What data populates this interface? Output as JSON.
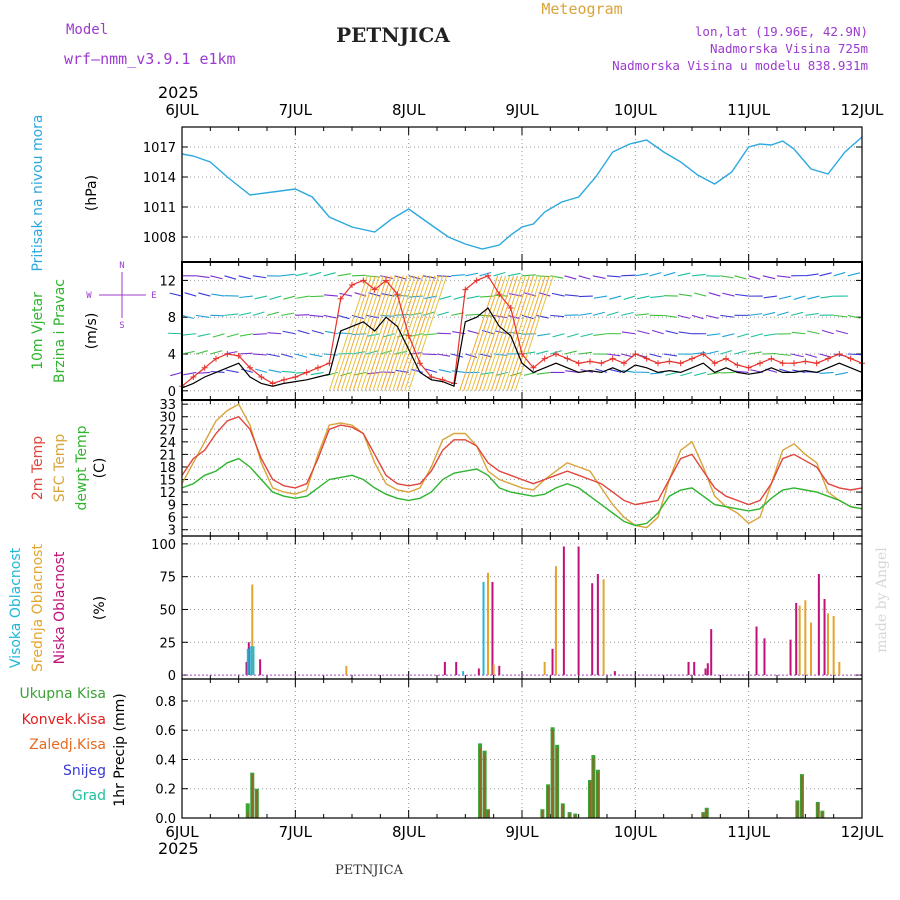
{
  "header": {
    "model_label": "Model",
    "model_name": "wrf—nmm_v3.9.1  e1km",
    "station": "PETNJICA",
    "product": "Meteogram",
    "lonlat": "lon,lat (19.96E, 42.9N)",
    "elevation": "Nadmorska Visina 725m",
    "model_elevation": "Nadmorska Visina u modelu 838.931m"
  },
  "footer": {
    "station": "PETNJICA",
    "credit": "made by Angel"
  },
  "time_axis": {
    "year": "2025",
    "labels": [
      "6JUL",
      "7JUL",
      "8JUL",
      "9JUL",
      "10JUL",
      "11JUL",
      "12JUL"
    ],
    "range_days": [
      0,
      6
    ]
  },
  "colors": {
    "pressure": "#2ba8e0",
    "wind_speed": "#000000",
    "gust": "#e8302a",
    "t2m": "#e0463c",
    "tsfc": "#d9a43a",
    "dewpoint": "#2fb52f",
    "high_cloud": "#20b8d8",
    "mid_cloud": "#e3a52e",
    "low_cloud": "#c0107a",
    "total_precip": "#3aa336",
    "convective": "#e02020",
    "frozen": "#e86a20",
    "snow": "#3a3ad8",
    "hail": "#20c0a0",
    "title": "#222222",
    "meta": "#9b3bcf"
  },
  "chart_data": [
    {
      "type": "line",
      "panel": "pressure",
      "ylabel": "Pritisak na nivou mora",
      "unit": "(hPa)",
      "ylim": [
        1005.5,
        1019.0
      ],
      "yticks": [
        1008,
        1011,
        1014,
        1017
      ],
      "grid": true,
      "x": [
        0,
        0.1,
        0.25,
        0.4,
        0.6,
        0.8,
        1.0,
        1.15,
        1.3,
        1.5,
        1.7,
        1.85,
        2.0,
        2.2,
        2.35,
        2.5,
        2.65,
        2.8,
        2.9,
        3.0,
        3.1,
        3.2,
        3.35,
        3.5,
        3.65,
        3.8,
        3.95,
        4.1,
        4.25,
        4.4,
        4.55,
        4.7,
        4.85,
        5.0,
        5.1,
        5.2,
        5.3,
        5.4,
        5.55,
        5.7,
        5.85,
        6.0
      ],
      "series": [
        {
          "values": [
            1016.3,
            1016.1,
            1015.5,
            1014.0,
            1012.2,
            1012.5,
            1012.8,
            1012.0,
            1010.0,
            1009.0,
            1008.5,
            1009.8,
            1010.8,
            1009.2,
            1008.0,
            1007.3,
            1006.8,
            1007.2,
            1008.2,
            1009.0,
            1009.3,
            1010.5,
            1011.5,
            1012.0,
            1014.0,
            1016.5,
            1017.3,
            1017.7,
            1016.5,
            1015.5,
            1014.2,
            1013.3,
            1014.5,
            1017.0,
            1017.3,
            1017.2,
            1017.6,
            1016.8,
            1014.8,
            1014.3,
            1016.5,
            1018.0
          ]
        }
      ]
    },
    {
      "type": "line",
      "panel": "wind",
      "ylabel": "10m Vjetar Brzina i Pravac",
      "unit": "(m/s)",
      "compass": [
        "N",
        "W",
        "E",
        "S"
      ],
      "ylim": [
        -1,
        14
      ],
      "yticks": [
        0,
        4,
        8,
        12
      ],
      "grid": true,
      "x": [
        0,
        0.1,
        0.2,
        0.3,
        0.4,
        0.5,
        0.6,
        0.7,
        0.8,
        0.9,
        1.0,
        1.1,
        1.2,
        1.3,
        1.4,
        1.5,
        1.6,
        1.7,
        1.8,
        1.9,
        2.0,
        2.1,
        2.2,
        2.3,
        2.4,
        2.5,
        2.6,
        2.7,
        2.8,
        2.9,
        3.0,
        3.1,
        3.2,
        3.3,
        3.4,
        3.5,
        3.6,
        3.7,
        3.8,
        3.9,
        4.0,
        4.1,
        4.2,
        4.3,
        4.4,
        4.5,
        4.6,
        4.7,
        4.8,
        4.9,
        5.0,
        5.1,
        5.2,
        5.3,
        5.4,
        5.5,
        5.6,
        5.7,
        5.8,
        5.9,
        6.0
      ],
      "series": [
        {
          "name": "speed",
          "values": [
            0.3,
            0.8,
            1.5,
            2.0,
            2.5,
            3.0,
            1.5,
            0.8,
            0.5,
            0.8,
            1.0,
            1.2,
            1.5,
            1.8,
            6.5,
            7.0,
            7.5,
            6.5,
            8.0,
            7.0,
            4.5,
            2.0,
            1.2,
            1.0,
            0.5,
            7.5,
            8.0,
            9.0,
            7.0,
            6.0,
            3.0,
            2.0,
            2.5,
            3.0,
            2.5,
            2.0,
            2.2,
            2.0,
            2.5,
            2.0,
            2.8,
            2.5,
            2.0,
            2.2,
            2.0,
            2.5,
            3.0,
            2.0,
            2.5,
            2.0,
            1.8,
            2.0,
            2.5,
            2.0,
            2.0,
            2.2,
            2.0,
            2.5,
            3.0,
            2.5,
            2.0
          ]
        },
        {
          "name": "gust",
          "values": [
            0.5,
            1.5,
            2.5,
            3.5,
            4.0,
            3.8,
            2.5,
            1.5,
            0.8,
            1.2,
            1.5,
            2.0,
            2.5,
            3.0,
            10.0,
            11.5,
            12.0,
            11.0,
            12.0,
            10.5,
            6.0,
            3.0,
            1.5,
            1.2,
            0.8,
            11.0,
            12.0,
            12.5,
            10.5,
            9.0,
            4.0,
            2.5,
            3.5,
            4.0,
            3.5,
            3.0,
            3.2,
            3.0,
            3.5,
            3.0,
            4.0,
            3.5,
            3.0,
            3.2,
            3.0,
            3.5,
            4.0,
            3.0,
            3.5,
            2.8,
            2.5,
            3.0,
            3.5,
            3.0,
            3.0,
            3.2,
            3.0,
            3.5,
            4.0,
            3.5,
            3.0
          ]
        }
      ]
    },
    {
      "type": "line",
      "panel": "temperature",
      "series_labels": [
        "2m Temp",
        "SFC Temp",
        "dewpt Temp"
      ],
      "unit": "(C)",
      "ylim": [
        1.5,
        34
      ],
      "yticks": [
        3,
        6,
        9,
        12,
        15,
        18,
        21,
        24,
        27,
        30,
        33
      ],
      "grid": true,
      "x": [
        0,
        0.1,
        0.2,
        0.3,
        0.4,
        0.5,
        0.6,
        0.7,
        0.8,
        0.9,
        1.0,
        1.1,
        1.2,
        1.3,
        1.4,
        1.5,
        1.6,
        1.7,
        1.8,
        1.9,
        2.0,
        2.1,
        2.2,
        2.3,
        2.4,
        2.5,
        2.6,
        2.7,
        2.8,
        2.9,
        3.0,
        3.1,
        3.2,
        3.3,
        3.4,
        3.5,
        3.6,
        3.7,
        3.8,
        3.9,
        4.0,
        4.1,
        4.2,
        4.3,
        4.4,
        4.5,
        4.6,
        4.7,
        4.8,
        4.9,
        5.0,
        5.1,
        5.2,
        5.3,
        5.4,
        5.5,
        5.6,
        5.7,
        5.8,
        5.9,
        6.0
      ],
      "series": [
        {
          "name": "t2m",
          "values": [
            16,
            20,
            22,
            26,
            29,
            30,
            27,
            20,
            15,
            13.5,
            13,
            14,
            20,
            27,
            28,
            27.5,
            26,
            21,
            16,
            14,
            13.5,
            14,
            17,
            22,
            24.5,
            24.5,
            23,
            19,
            17,
            16,
            15,
            14,
            15,
            16,
            17,
            16,
            15,
            14,
            12,
            10,
            9,
            9.5,
            10,
            15,
            20,
            21,
            17,
            13,
            11,
            10,
            9,
            10,
            14,
            20,
            21,
            19.5,
            18,
            14,
            13,
            12.5,
            13
          ]
        },
        {
          "name": "tsfc",
          "values": [
            14,
            19,
            24,
            29,
            31.5,
            33,
            28,
            19,
            13,
            12,
            11.5,
            12.5,
            21,
            28,
            28.5,
            28,
            26,
            19,
            14,
            12.5,
            12,
            13,
            18,
            24.5,
            26,
            26,
            23,
            17,
            15,
            14,
            13,
            12.5,
            15,
            17,
            19,
            18,
            17,
            13,
            9,
            6,
            4,
            3.5,
            6,
            15,
            22,
            24,
            18,
            11,
            8.5,
            7,
            4.5,
            6,
            14,
            22,
            23.5,
            21,
            19,
            12,
            10,
            8.5,
            8
          ]
        },
        {
          "name": "dewpoint",
          "values": [
            13,
            14,
            16,
            17,
            19,
            20,
            18,
            15,
            12,
            11,
            10.5,
            11,
            13,
            15,
            15.5,
            16,
            15,
            13,
            11.5,
            10.5,
            10,
            10.5,
            12,
            15,
            16.5,
            17,
            17.5,
            16,
            13,
            12,
            11.5,
            11,
            11.5,
            13,
            14,
            13,
            11,
            9,
            7,
            5,
            4,
            4.5,
            7,
            11,
            12.5,
            13,
            11,
            9,
            8.5,
            8,
            7.5,
            8,
            10.5,
            12.5,
            13,
            12.5,
            12,
            11,
            10,
            8.5,
            8
          ]
        }
      ]
    },
    {
      "type": "bar",
      "panel": "clouds",
      "series_labels": [
        "Visoka Oblacnost",
        "Srednja Oblacnost",
        "Niska Oblacnost"
      ],
      "unit": "(%)",
      "ylim": [
        -3,
        106
      ],
      "yticks": [
        0,
        25,
        50,
        75,
        100
      ],
      "grid": true,
      "x": [
        0.55,
        0.57,
        0.6,
        0.62,
        0.63,
        0.65,
        0.67,
        0.7,
        1.45,
        2.3,
        2.4,
        2.5,
        2.6,
        2.68,
        2.7,
        2.72,
        2.75,
        2.78,
        3.2,
        3.25,
        3.28,
        3.3,
        3.35,
        3.4,
        3.48,
        3.55,
        3.6,
        3.65,
        3.68,
        3.72,
        3.75,
        3.8,
        4.45,
        4.5,
        4.6,
        4.62,
        4.65,
        4.75,
        5.05,
        5.12,
        5.35,
        5.4,
        5.45,
        5.5,
        5.55,
        5.6,
        5.65,
        5.7,
        5.75,
        5.8
      ],
      "series": [
        {
          "name": "high",
          "values": [
            0,
            0,
            20,
            0,
            22,
            22,
            0,
            0,
            0,
            0,
            0,
            3,
            0,
            71,
            0,
            0,
            0,
            0,
            0,
            0,
            0,
            0,
            0,
            0,
            0,
            0,
            0,
            0,
            0,
            0,
            0,
            0,
            0,
            0,
            0,
            0,
            0,
            0,
            0,
            0,
            0,
            0,
            0,
            0,
            0,
            0,
            0,
            0,
            0,
            0
          ]
        },
        {
          "name": "mid",
          "values": [
            0,
            0,
            0,
            69,
            0,
            0,
            0,
            0,
            7,
            0,
            0,
            0,
            0,
            0,
            78,
            0,
            8,
            0,
            10,
            0,
            0,
            83,
            0,
            0,
            0,
            0,
            0,
            0,
            0,
            73,
            0,
            0,
            0,
            0,
            0,
            0,
            0,
            0,
            0,
            0,
            0,
            0,
            53,
            57,
            40,
            0,
            0,
            47,
            45,
            10
          ]
        },
        {
          "name": "low",
          "values": [
            10,
            25,
            0,
            0,
            0,
            0,
            12,
            0,
            0,
            10,
            10,
            0,
            5,
            0,
            0,
            71,
            0,
            7,
            0,
            20,
            80,
            0,
            98,
            0,
            98,
            0,
            70,
            77,
            0,
            0,
            0,
            3,
            10,
            10,
            5,
            9,
            35,
            0,
            37,
            28,
            27,
            55,
            0,
            0,
            0,
            77,
            58,
            0,
            0,
            0
          ]
        }
      ]
    },
    {
      "type": "bar",
      "panel": "precipitation",
      "series_labels": [
        "Ukupna Kisa",
        "Konvek.Kisa",
        "Zaledj.Kisa",
        "Snijeg",
        "Grad"
      ],
      "ylabel": "1hr Precip",
      "unit": "(mm)",
      "ylim": [
        0,
        0.95
      ],
      "yticks": [
        0,
        0.2,
        0.4,
        0.6,
        0.8
      ],
      "grid": true,
      "x": [
        0.58,
        0.62,
        0.66,
        2.63,
        2.67,
        2.7,
        3.18,
        3.23,
        3.27,
        3.31,
        3.36,
        3.42,
        3.47,
        3.6,
        3.63,
        3.67,
        4.6,
        4.63,
        5.43,
        5.47,
        5.61,
        5.65
      ],
      "series": [
        {
          "name": "total",
          "values": [
            0.1,
            0.31,
            0.2,
            0.51,
            0.46,
            0.06,
            0.06,
            0.23,
            0.62,
            0.5,
            0.1,
            0.04,
            0.03,
            0.26,
            0.43,
            0.33,
            0.04,
            0.07,
            0.12,
            0.3,
            0.11,
            0.05
          ]
        },
        {
          "name": "convective",
          "values": [
            0.04,
            0.3,
            0.19,
            0.48,
            0.44,
            0.05,
            0.05,
            0.22,
            0.6,
            0.48,
            0.09,
            0.03,
            0.02,
            0.25,
            0.41,
            0.31,
            0.03,
            0.06,
            0.11,
            0.29,
            0.1,
            0.04
          ]
        }
      ]
    }
  ]
}
